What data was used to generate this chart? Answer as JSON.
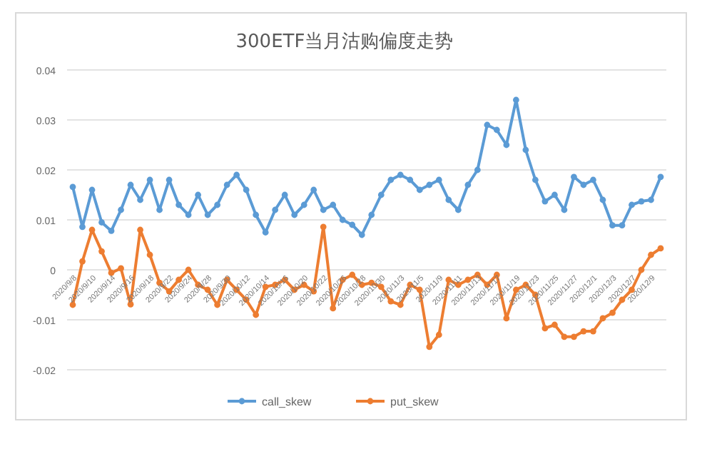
{
  "chart_data": {
    "type": "line",
    "title": "300ETF当月沽购偏度走势",
    "categories": [
      "2020/9/8",
      null,
      "2020/9/10",
      null,
      "2020/9/14",
      null,
      "2020/9/16",
      null,
      "2020/9/18",
      null,
      "2020/9/22",
      null,
      "2020/9/24",
      null,
      "2020/9/28",
      null,
      "2020/9/30",
      null,
      "2020/10/12",
      null,
      "2020/10/14",
      null,
      "2020/10/16",
      null,
      "2020/10/20",
      null,
      "2020/10/22",
      null,
      "2020/10/26",
      null,
      "2020/10/28",
      null,
      "2020/10/30",
      null,
      "2020/11/3",
      null,
      "2020/11/5",
      null,
      "2020/11/9",
      null,
      "2020/11/11",
      null,
      "2020/11/13",
      null,
      "2020/11/17",
      null,
      "2020/11/19",
      null,
      "2020/11/23",
      null,
      "2020/11/25",
      null,
      "2020/11/27",
      null,
      "2020/12/1",
      null,
      "2020/12/3",
      null,
      "2020/12/7",
      null,
      "2020/12/9",
      null
    ],
    "series": [
      {
        "name": "call_skew",
        "color": "#5b9bd5",
        "values": [
          0.0166,
          0.0086,
          0.016,
          0.0095,
          0.0078,
          0.012,
          0.017,
          0.014,
          0.018,
          0.012,
          0.018,
          0.013,
          0.011,
          0.015,
          0.011,
          0.013,
          0.017,
          0.019,
          0.016,
          0.011,
          0.0075,
          0.012,
          0.015,
          0.011,
          0.013,
          0.016,
          0.012,
          0.013,
          0.01,
          0.009,
          0.007,
          0.011,
          0.015,
          0.018,
          0.019,
          0.018,
          0.016,
          0.017,
          0.018,
          0.014,
          0.012,
          0.017,
          0.02,
          0.029,
          0.028,
          0.025,
          0.034,
          0.024,
          0.018,
          0.0137,
          0.015,
          0.012,
          0.0186,
          0.017,
          0.018,
          0.014,
          0.0089,
          0.0089,
          0.013,
          0.0137,
          0.014,
          0.0186
        ]
      },
      {
        "name": "put_skew",
        "color": "#ed7d31",
        "values": [
          -0.007,
          0.0017,
          0.008,
          0.0037,
          -0.0006,
          0.0003,
          -0.0069,
          0.008,
          0.003,
          -0.0026,
          -0.0043,
          -0.002,
          0,
          -0.003,
          -0.004,
          -0.007,
          -0.002,
          -0.004,
          -0.006,
          -0.009,
          -0.0034,
          -0.003,
          -0.002,
          -0.004,
          -0.003,
          -0.0043,
          0.0086,
          -0.0077,
          -0.002,
          -0.001,
          -0.003,
          -0.0026,
          -0.0034,
          -0.0063,
          -0.007,
          -0.003,
          -0.004,
          -0.0154,
          -0.013,
          -0.002,
          -0.003,
          -0.002,
          -0.001,
          -0.003,
          -0.001,
          -0.0097,
          -0.004,
          -0.003,
          -0.005,
          -0.0117,
          -0.011,
          -0.0134,
          -0.0134,
          -0.0123,
          -0.0123,
          -0.0097,
          -0.0086,
          -0.006,
          -0.004,
          0,
          0.003,
          0.0043
        ]
      }
    ],
    "ylim": [
      -0.02,
      0.04
    ],
    "yticks": [
      -0.02,
      -0.01,
      0,
      0.01,
      0.02,
      0.03,
      0.04
    ],
    "grid": "y",
    "legend": "bottom",
    "marker": "circle",
    "line_style": "solid"
  }
}
